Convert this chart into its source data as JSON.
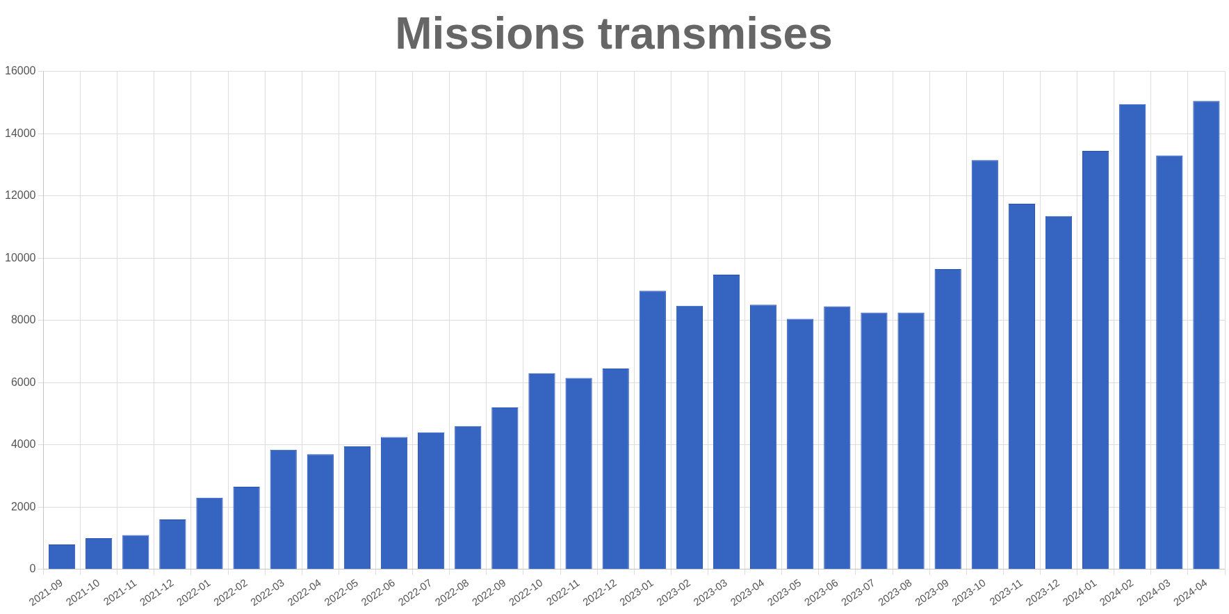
{
  "chart_data": {
    "type": "bar",
    "title": "Missions transmises",
    "categories": [
      "2021-09",
      "2021-10",
      "2021-11",
      "2021-12",
      "2022-01",
      "2022-02",
      "2022-03",
      "2022-04",
      "2022-05",
      "2022-06",
      "2022-07",
      "2022-08",
      "2022-09",
      "2022-10",
      "2022-11",
      "2022-12",
      "2023-01",
      "2023-02",
      "2023-03",
      "2023-04",
      "2023-05",
      "2023-06",
      "2023-07",
      "2023-08",
      "2023-09",
      "2023-10",
      "2023-11",
      "2023-12",
      "2024-01",
      "2024-02",
      "2024-03",
      "2024-04"
    ],
    "values": [
      800,
      1000,
      1100,
      1600,
      2300,
      2650,
      3840,
      3700,
      3950,
      4250,
      4400,
      4600,
      5200,
      6300,
      6150,
      6450,
      8950,
      8470,
      9470,
      8500,
      8050,
      8450,
      8250,
      8250,
      9650,
      13150,
      11750,
      11350,
      13450,
      14950,
      13300,
      15050
    ],
    "color": "#3664c1",
    "ylim": [
      0,
      16000
    ],
    "yticks": [
      0,
      2000,
      4000,
      6000,
      8000,
      10000,
      12000,
      14000,
      16000
    ],
    "grid": true
  }
}
